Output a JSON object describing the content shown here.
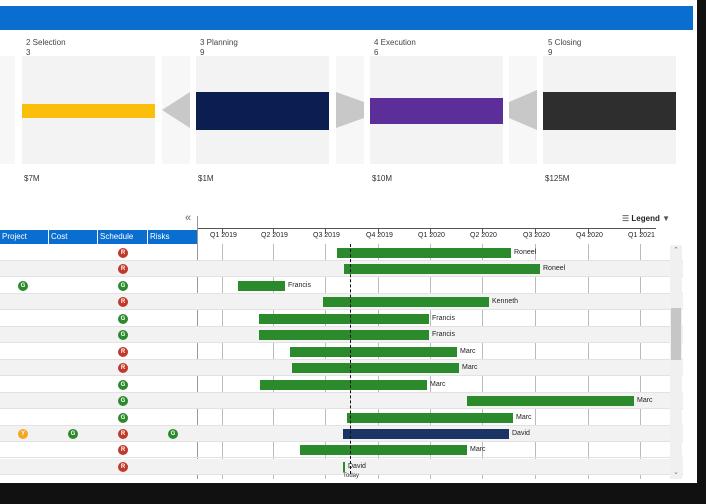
{
  "stages": [
    {
      "name": "2 Selection",
      "count": "3",
      "amount": "$7M",
      "color": "#fbbf0b"
    },
    {
      "name": "3 Planning",
      "count": "9",
      "amount": "$1M",
      "color": "#0a1e52"
    },
    {
      "name": "4 Execution",
      "count": "6",
      "amount": "$10M",
      "color": "#5c2e99"
    },
    {
      "name": "5 Closing",
      "count": "9",
      "amount": "$125M",
      "color": "#2e2e2e"
    }
  ],
  "table": {
    "collapse_glyph": "«",
    "columns": [
      "Project",
      "Cost",
      "Schedule",
      "Risks"
    ]
  },
  "legend": {
    "label": "Legend"
  },
  "quarters": [
    "Q1 2019",
    "Q2 2019",
    "Q3 2019",
    "Q4 2019",
    "Q1 2020",
    "Q2 2020",
    "Q3 2020",
    "Q4 2020",
    "Q1 2021"
  ],
  "today_label": "Today",
  "rows": [
    {
      "schedule": "R",
      "owner": "Roneel"
    },
    {
      "schedule": "R",
      "owner": "Roneel"
    },
    {
      "project": "G",
      "schedule": "G",
      "owner": "Francis"
    },
    {
      "schedule": "R",
      "owner": "Kenneth"
    },
    {
      "schedule": "G",
      "owner": "Francis"
    },
    {
      "schedule": "G",
      "owner": "Francis"
    },
    {
      "schedule": "R",
      "owner": "Marc"
    },
    {
      "schedule": "R",
      "owner": "Marc"
    },
    {
      "schedule": "G",
      "owner": "Marc"
    },
    {
      "schedule": "G",
      "owner": "Marc"
    },
    {
      "schedule": "G",
      "owner": "Marc"
    },
    {
      "project": "Y",
      "cost": "G",
      "schedule": "R",
      "risks": "G",
      "owner": "David"
    },
    {
      "schedule": "R",
      "owner": "Marc"
    },
    {
      "schedule": "R",
      "owner": "David"
    }
  ],
  "colors": {
    "green": "#2b8a2b",
    "red": "#c0392b",
    "amber": "#f5a623",
    "navy": "#1a3466",
    "blue": "#0a6ed1"
  }
}
